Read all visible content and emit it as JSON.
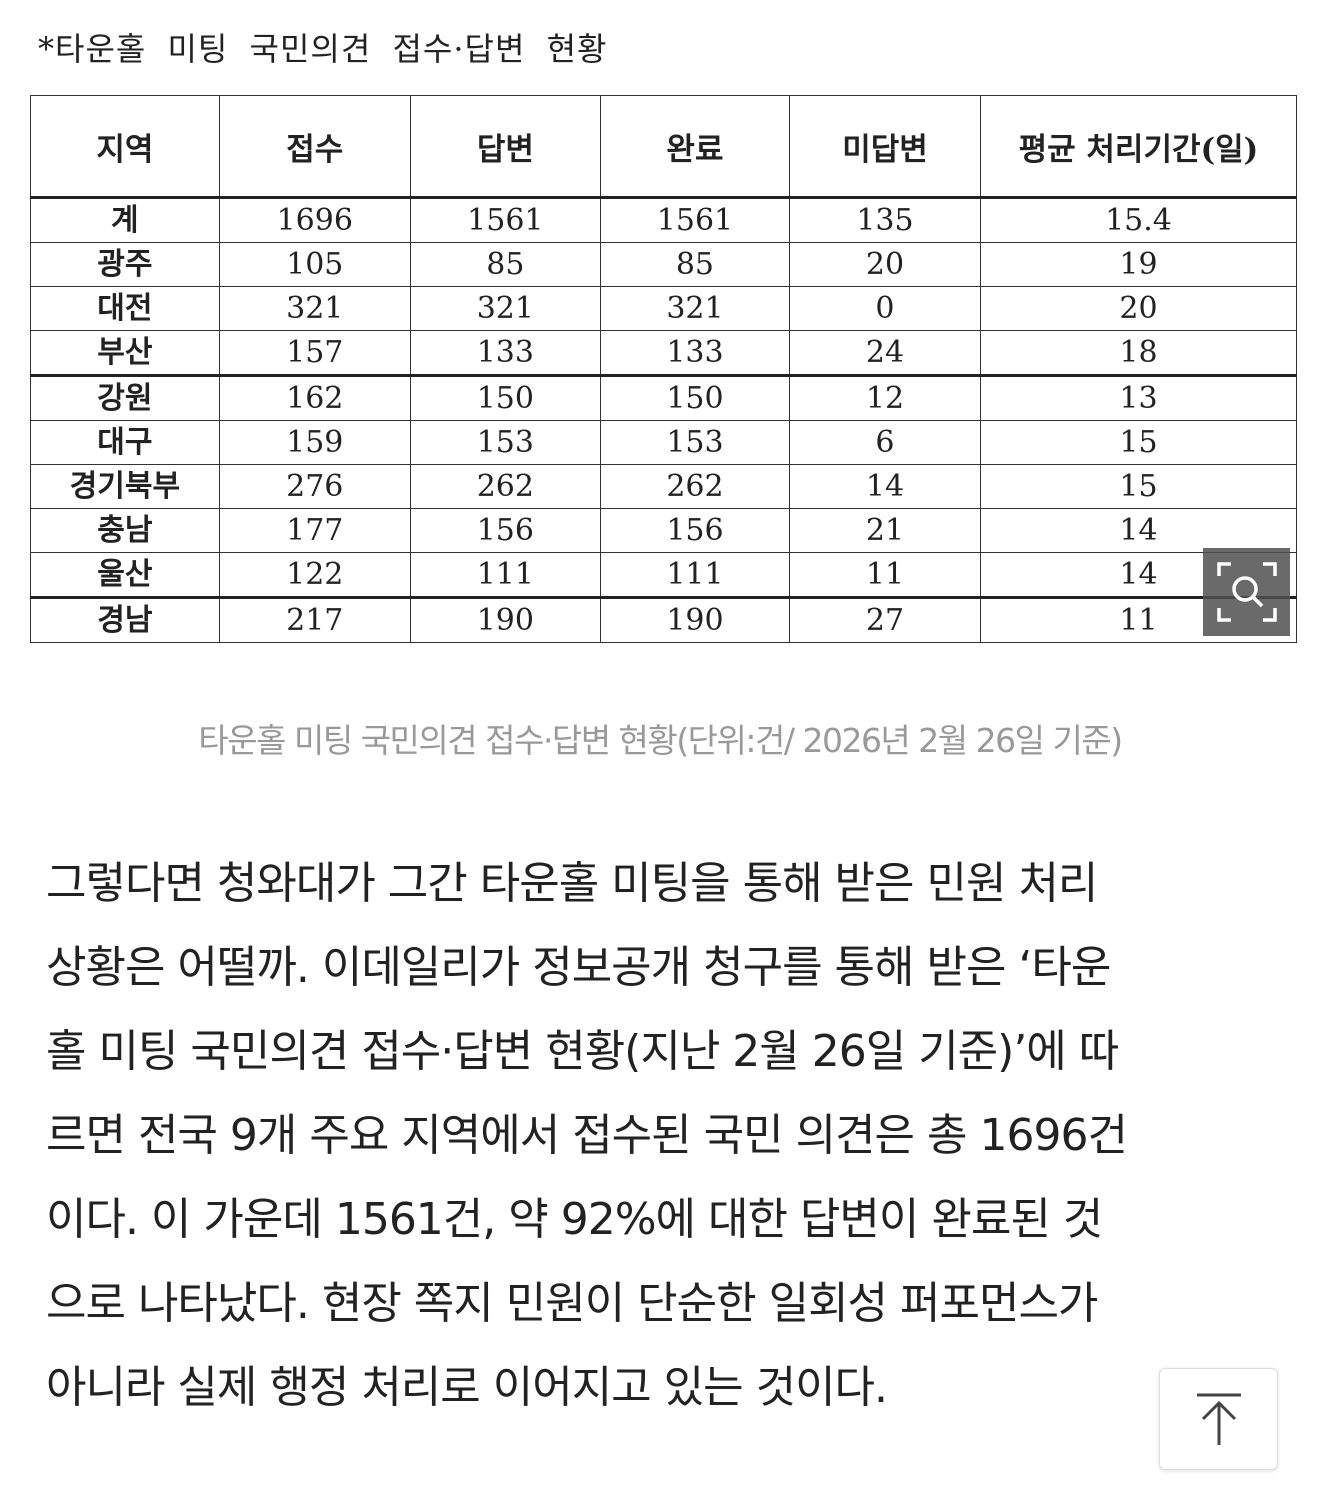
{
  "figure": {
    "title": "*타운홀 미팅 국민의견 접수·답변 현황",
    "columns": [
      "지역",
      "접수",
      "답변",
      "완료",
      "미답변",
      "평균 처리기간(일)"
    ],
    "rows": [
      [
        "계",
        "1696",
        "1561",
        "1561",
        "135",
        "15.4"
      ],
      [
        "광주",
        "105",
        "85",
        "85",
        "20",
        "19"
      ],
      [
        "대전",
        "321",
        "321",
        "321",
        "0",
        "20"
      ],
      [
        "부산",
        "157",
        "133",
        "133",
        "24",
        "18"
      ],
      [
        "강원",
        "162",
        "150",
        "150",
        "12",
        "13"
      ],
      [
        "대구",
        "159",
        "153",
        "153",
        "6",
        "15"
      ],
      [
        "경기북부",
        "276",
        "262",
        "262",
        "14",
        "15"
      ],
      [
        "충남",
        "177",
        "156",
        "156",
        "21",
        "14"
      ],
      [
        "울산",
        "122",
        "111",
        "111",
        "11",
        "14"
      ],
      [
        "경남",
        "217",
        "190",
        "190",
        "27",
        "11"
      ]
    ],
    "zoom_icon": "magnify-icon"
  },
  "caption": "타운홀 미팅 국민의견 접수·답변 현황(단위:건/ 2026년 2월 26일 기준)",
  "article": {
    "lines": [
      "그렇다면 청와대가 그간 타운홀 미팅을 통해 받은 민원 처리",
      "상황은 어떨까. 이데일리가 정보공개 청구를 통해 받은 ‘타운",
      "홀 미팅 국민의견 접수·답변 현황(지난 2월 26일 기준)’에 따",
      "르면 전국 9개 주요 지역에서 접수된 국민 의견은 총 1696건",
      "이다. 이 가운데 1561건, 약 92%에 대한 답변이 완료된 것",
      "으로 나타났다. 현장 쪽지 민원이 단순한 일회성 퍼포먼스가",
      "아니라 실제 행정 처리로 이어지고 있는 것이다."
    ]
  },
  "scroll_top_icon": "arrow-up-to-top-icon"
}
